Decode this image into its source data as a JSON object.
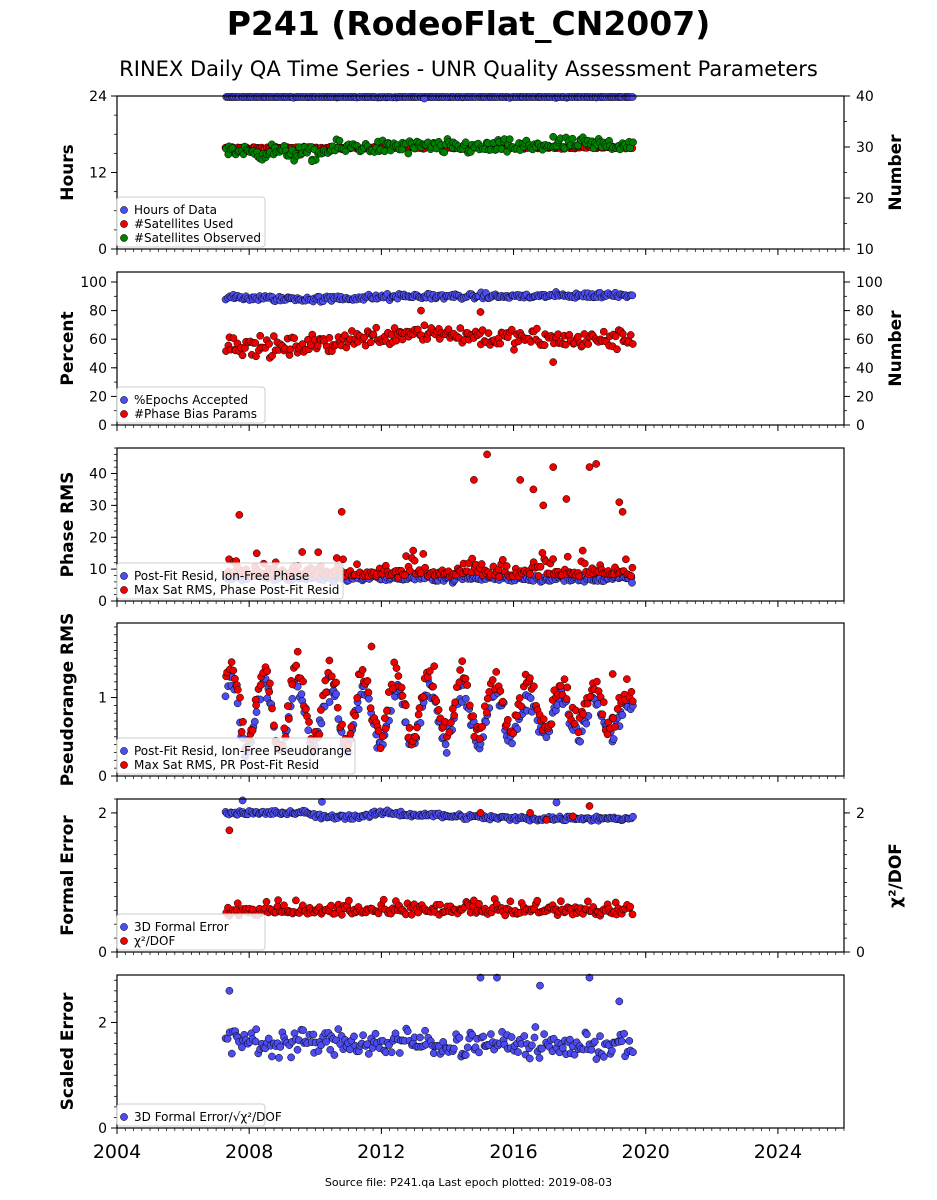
{
  "title": "P241 (RodeoFlat_CN2007)",
  "subtitle": "RINEX Daily QA Time Series - UNR Quality Assessment Parameters",
  "footer": "Source file: P241.qa Last epoch plotted: 2019-08-03",
  "colors": {
    "blue": "#4c4cf0",
    "red": "#ee0000",
    "green": "#008000",
    "edge": "#000000"
  },
  "chart_data": [
    {
      "type": "scatter",
      "ylabel": "Hours",
      "y2label": "Number",
      "ylim": [
        0,
        24
      ],
      "yticks": [
        0,
        12,
        24
      ],
      "yminor": 3,
      "y2lim": [
        10,
        40
      ],
      "y2ticks": [
        10,
        20,
        30,
        40
      ],
      "y2minor": 5,
      "x_tick_labels": false,
      "legend": [
        "Hours of Data",
        "#Satellites Used",
        "#Satellites Observed"
      ],
      "series": [
        {
          "name": "Hours of Data",
          "color": "blue",
          "axis": "left",
          "kind": "band",
          "t_start": 2007.3,
          "t_end": 2019.6,
          "levels": [
            [
              2007.3,
              24.0
            ],
            [
              2019.6,
              24.0
            ]
          ],
          "spread": 0.2,
          "outliers": [
            [
              2013.3,
              23.6
            ]
          ]
        },
        {
          "name": "#Satellites Used",
          "color": "red",
          "axis": "right",
          "kind": "band",
          "t_start": 2007.3,
          "t_end": 2019.6,
          "levels": [
            [
              2007.3,
              29.8
            ],
            [
              2019.6,
              29.9
            ]
          ],
          "spread": 0.2,
          "outliers": [
            [
              2009.8,
              30.0
            ]
          ]
        },
        {
          "name": "#Satellites Observed",
          "color": "green",
          "axis": "right",
          "kind": "band",
          "t_start": 2007.3,
          "t_end": 2019.6,
          "levels": [
            [
              2007.3,
              29.5
            ],
            [
              2008.0,
              29.0
            ],
            [
              2009.0,
              29.0
            ],
            [
              2010.0,
              28.5
            ],
            [
              2010.8,
              30.0
            ],
            [
              2012.0,
              30.0
            ],
            [
              2014.0,
              30.0
            ],
            [
              2016.0,
              30.0
            ],
            [
              2017.5,
              30.5
            ],
            [
              2019.6,
              30.5
            ]
          ],
          "spread": 1.2,
          "outliers": [
            [
              2017.2,
              32.0
            ],
            [
              2009.9,
              27.2
            ]
          ]
        }
      ]
    },
    {
      "type": "scatter",
      "ylabel": "Percent",
      "y2label": "Number",
      "ylim": [
        0,
        107
      ],
      "yticks": [
        0,
        20,
        40,
        60,
        80,
        100
      ],
      "yminor": 10,
      "y2lim": [
        0,
        107
      ],
      "y2ticks": [
        0,
        20,
        40,
        60,
        80,
        100
      ],
      "y2minor": 10,
      "x_tick_labels": false,
      "legend": [
        "%Epochs Accepted",
        "#Phase Bias Params"
      ],
      "series": [
        {
          "name": "%Epochs Accepted",
          "color": "blue",
          "axis": "left",
          "kind": "band",
          "t_start": 2007.3,
          "t_end": 2019.6,
          "levels": [
            [
              2007.3,
              89
            ],
            [
              2010.0,
              88
            ],
            [
              2013.0,
              90
            ],
            [
              2016.0,
              90
            ],
            [
              2019.6,
              91
            ]
          ],
          "spread": 1.8,
          "outliers": []
        },
        {
          "name": "#Phase Bias Params",
          "color": "red",
          "axis": "left",
          "kind": "band",
          "t_start": 2007.3,
          "t_end": 2019.6,
          "levels": [
            [
              2007.3,
              57
            ],
            [
              2008.0,
              55
            ],
            [
              2009.0,
              54
            ],
            [
              2010.0,
              56
            ],
            [
              2011.0,
              60
            ],
            [
              2012.0,
              62
            ],
            [
              2013.0,
              66
            ],
            [
              2014.0,
              64
            ],
            [
              2015.0,
              62
            ],
            [
              2016.0,
              60
            ],
            [
              2017.0,
              60
            ],
            [
              2018.0,
              59
            ],
            [
              2019.6,
              60
            ]
          ],
          "spread": 6,
          "outliers": [
            [
              2017.2,
              44
            ],
            [
              2015.0,
              79
            ],
            [
              2013.2,
              80
            ]
          ]
        }
      ]
    },
    {
      "type": "scatter",
      "ylabel": "Phase RMS",
      "ylim": [
        0,
        48
      ],
      "yticks": [
        0,
        10,
        20,
        30,
        40
      ],
      "yminor": 2,
      "x_tick_labels": false,
      "legend": [
        "Post-Fit Resid, Ion-Free Phase",
        "Max Sat RMS, Phase Post-Fit Resid"
      ],
      "series": [
        {
          "name": "Post-Fit Resid, Ion-Free Phase",
          "color": "blue",
          "axis": "left",
          "kind": "band",
          "t_start": 2007.3,
          "t_end": 2019.6,
          "levels": [
            [
              2007.3,
              7.5
            ],
            [
              2019.6,
              7.0
            ]
          ],
          "spread": 1.0,
          "outliers": []
        },
        {
          "name": "Max Sat RMS, Phase Post-Fit Resid",
          "color": "red",
          "axis": "left",
          "kind": "skew",
          "t_start": 2007.3,
          "t_end": 2019.6,
          "base": 8.5,
          "tail": 5,
          "tail_max": 16,
          "up_frac": 0.35,
          "outliers": [
            [
              2015.2,
              46
            ],
            [
              2016.2,
              38
            ],
            [
              2017.2,
              42
            ],
            [
              2018.3,
              42
            ],
            [
              2018.5,
              43
            ],
            [
              2014.8,
              38
            ],
            [
              2016.6,
              35
            ],
            [
              2019.2,
              31
            ],
            [
              2019.3,
              28
            ],
            [
              2017.6,
              32
            ],
            [
              2016.9,
              30
            ],
            [
              2010.8,
              28
            ],
            [
              2007.7,
              27
            ]
          ]
        }
      ]
    },
    {
      "type": "scatter",
      "ylabel": "Pseudorange RMS",
      "ylim": [
        0,
        1.95
      ],
      "yticks": [
        0,
        1
      ],
      "yminor": 0.1,
      "x_tick_labels": false,
      "legend": [
        "Post-Fit Resid, Ion-Free Pseudorange",
        "Max Sat RMS, PR Post-Fit Resid"
      ],
      "series": [
        {
          "name": "Post-Fit Resid, Ion-Free Pseudorange",
          "color": "blue",
          "axis": "left",
          "kind": "seasonal",
          "t_start": 2007.3,
          "t_end": 2019.6,
          "mean": 0.75,
          "amp_start": 0.45,
          "amp_end": 0.2,
          "spread": 0.12,
          "outliers": []
        },
        {
          "name": "Max Sat RMS, PR Post-Fit Resid",
          "color": "red",
          "axis": "left",
          "kind": "seasonal",
          "t_start": 2007.3,
          "t_end": 2019.6,
          "mean": 0.9,
          "amp_start": 0.55,
          "amp_end": 0.2,
          "spread": 0.14,
          "outliers": [
            [
              2011.7,
              1.65
            ],
            [
              2019.0,
              1.3
            ],
            [
              2013.6,
              1.4
            ]
          ]
        }
      ]
    },
    {
      "type": "scatter",
      "ylabel": "Formal Error",
      "y2label": "χ²/DOF",
      "ylim": [
        0,
        2.2
      ],
      "yticks": [
        0,
        2
      ],
      "yminor": 0.2,
      "y2lim": [
        0,
        2.2
      ],
      "y2ticks": [
        0,
        2
      ],
      "y2minor": 0.2,
      "x_tick_labels": false,
      "legend": [
        "3D Formal Error",
        "χ²/DOF"
      ],
      "series": [
        {
          "name": "3D Formal Error",
          "color": "blue",
          "axis": "left",
          "kind": "band",
          "t_start": 2007.3,
          "t_end": 2019.6,
          "levels": [
            [
              2007.3,
              2.0
            ],
            [
              2009.8,
              2.0
            ],
            [
              2010.0,
              1.95
            ],
            [
              2011.5,
              1.95
            ],
            [
              2012.0,
              2.0
            ],
            [
              2014.5,
              1.95
            ],
            [
              2016.0,
              1.92
            ],
            [
              2019.6,
              1.92
            ]
          ],
          "spread": 0.03,
          "outliers": [
            [
              2007.8,
              2.18
            ],
            [
              2010.2,
              2.16
            ],
            [
              2017.3,
              2.15
            ]
          ]
        },
        {
          "name": "χ²/DOF",
          "color": "red",
          "axis": "left",
          "kind": "skew",
          "t_start": 2007.3,
          "t_end": 2019.6,
          "base": 0.58,
          "tail": 0.25,
          "tail_max": 0.75,
          "up_frac": 0.35,
          "outliers": [
            [
              2015.0,
              2.0
            ],
            [
              2016.5,
              2.0
            ],
            [
              2018.3,
              2.1
            ],
            [
              2017.0,
              1.9
            ],
            [
              2017.8,
              1.95
            ],
            [
              2007.4,
              1.75
            ]
          ]
        }
      ]
    },
    {
      "type": "scatter",
      "ylabel": "Scaled Error",
      "ylim": [
        0,
        2.9
      ],
      "yticks": [
        0,
        2
      ],
      "yminor": 0.2,
      "x_tick_labels": true,
      "xlim": [
        2004,
        2026
      ],
      "xticks": [
        2004,
        2008,
        2012,
        2016,
        2020,
        2024
      ],
      "xminor": 0.25,
      "legend": [
        "3D Formal Error/√χ²/DOF"
      ],
      "series": [
        {
          "name": "3D Formal Error/√χ²/DOF",
          "color": "blue",
          "axis": "left",
          "kind": "band",
          "t_start": 2007.3,
          "t_end": 2019.6,
          "levels": [
            [
              2007.3,
              1.65
            ],
            [
              2019.6,
              1.55
            ]
          ],
          "spread": 0.22,
          "outliers": [
            [
              2007.4,
              2.6
            ],
            [
              2015.0,
              2.85
            ],
            [
              2015.5,
              2.85
            ],
            [
              2018.3,
              2.85
            ],
            [
              2016.8,
              2.7
            ],
            [
              2019.2,
              2.4
            ]
          ]
        }
      ]
    }
  ]
}
